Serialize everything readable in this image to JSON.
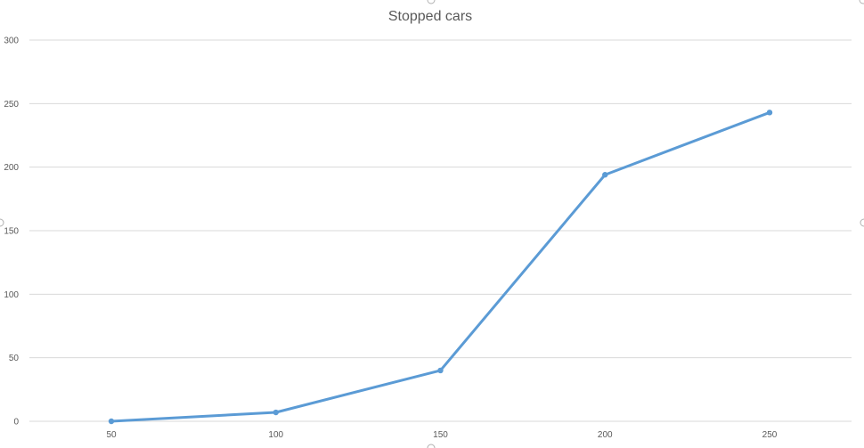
{
  "chart_data": {
    "type": "line",
    "title": "Stopped cars",
    "xlabel": "",
    "ylabel": "",
    "x": [
      50,
      100,
      150,
      200,
      250
    ],
    "series": [
      {
        "values": [
          0,
          7,
          40,
          194,
          243
        ]
      }
    ],
    "ylim": [
      0,
      300
    ],
    "yticks": [
      0,
      50,
      100,
      150,
      200,
      250,
      300
    ],
    "xticks": [
      50,
      100,
      150,
      200,
      250
    ],
    "grid": true,
    "legend": "none"
  },
  "colors": {
    "series": "#5b9bd5",
    "grid": "#d9d9d9",
    "text": "#595959"
  }
}
